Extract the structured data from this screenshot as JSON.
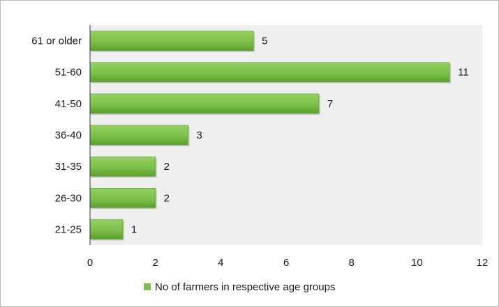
{
  "chart_data": {
    "type": "bar",
    "orientation": "horizontal",
    "categories": [
      "61 or older",
      "51-60",
      "41-50",
      "36-40",
      "31-35",
      "26-30",
      "21-25"
    ],
    "series": [
      {
        "name": "No of farmers in respective age groups",
        "values": [
          5,
          11,
          7,
          3,
          2,
          2,
          1
        ]
      }
    ],
    "xlim": [
      0,
      12
    ],
    "x_ticks": [
      0,
      2,
      4,
      6,
      8,
      10,
      12
    ],
    "title": "",
    "xlabel": "",
    "ylabel": "",
    "grid": false,
    "data_labels": true,
    "legend_position": "bottom",
    "colors": {
      "bar": "#7cc04a",
      "bar_dark": "#5aa02c",
      "plot_background": "#efefef",
      "axis": "#333333"
    }
  }
}
